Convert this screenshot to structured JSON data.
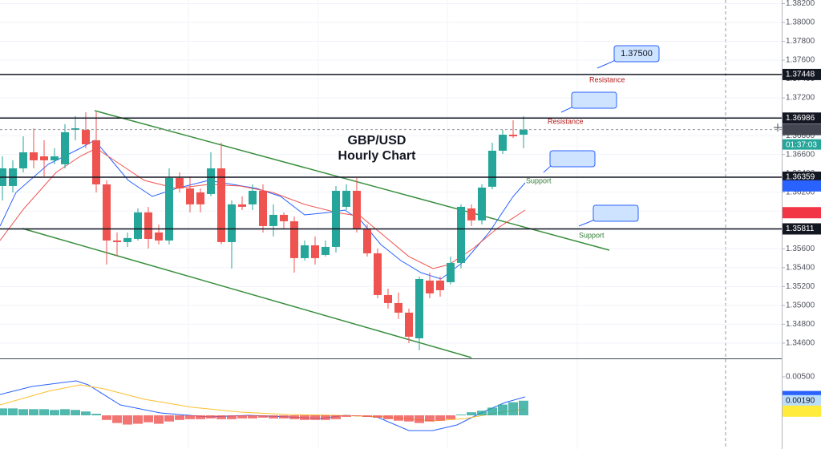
{
  "chart_data": [
    {
      "type": "candlestick",
      "title": [
        "GBP/USD",
        "Hourly Chart"
      ],
      "up_color": "#26a69a",
      "down_color": "#ef5350",
      "grid": true,
      "ylim": [
        1.34438,
        1.38238
      ],
      "yticks": [
        {
          "value": 1.346,
          "label": "1.34600"
        },
        {
          "value": 1.348,
          "label": "1.34800"
        },
        {
          "value": 1.35,
          "label": "1.35000"
        },
        {
          "value": 1.352,
          "label": "1.35200"
        },
        {
          "value": 1.354,
          "label": "1.35400"
        },
        {
          "value": 1.356,
          "label": "1.35600"
        },
        {
          "value": 1.358,
          "label": "1.35800"
        },
        {
          "value": 1.36,
          "label": "1.36000"
        },
        {
          "value": 1.362,
          "label": "1.36200"
        },
        {
          "value": 1.364,
          "label": "1.36400"
        },
        {
          "value": 1.366,
          "label": "1.36600"
        },
        {
          "value": 1.368,
          "label": "1.36800"
        },
        {
          "value": 1.37,
          "label": "1.37000"
        },
        {
          "value": 1.372,
          "label": "1.37200"
        },
        {
          "value": 1.374,
          "label": "1.37400"
        },
        {
          "value": 1.376,
          "label": "1.37600"
        },
        {
          "value": 1.378,
          "label": "1.37800"
        },
        {
          "value": 1.38,
          "label": "1.38000"
        },
        {
          "value": 1.382,
          "label": "1.38200"
        }
      ],
      "open": [
        1.36266,
        1.36266,
        1.36453,
        1.36623,
        1.3658,
        1.36538,
        1.36496,
        1.36861,
        1.36861,
        1.3675,
        1.36283,
        1.35688,
        1.35671,
        1.35705,
        1.35986,
        1.35773,
        1.35688,
        1.36351,
        1.3624,
        1.36198,
        1.36181,
        1.36453,
        1.35671,
        1.36071,
        1.36071,
        1.36215,
        1.35841,
        1.3596,
        1.35892,
        1.35501,
        1.35637,
        1.35535,
        1.3562,
        1.36045,
        1.36215,
        1.35816,
        1.35552,
        1.3511,
        1.35025,
        1.34923,
        1.34651,
        1.35263,
        1.35263,
        1.35246,
        1.3545,
        1.36028,
        1.35901,
        1.36258,
        1.3664,
        1.3681,
        1.3681
      ],
      "high": [
        1.3658,
        1.36538,
        1.36793,
        1.36878,
        1.3675,
        1.36666,
        1.36921,
        1.37006,
        1.37048,
        1.37048,
        1.36326,
        1.35773,
        1.35773,
        1.36028,
        1.36045,
        1.35858,
        1.36453,
        1.3641,
        1.36368,
        1.3624,
        1.36623,
        1.36725,
        1.36113,
        1.36156,
        1.36283,
        1.36283,
        1.36071,
        1.35986,
        1.35943,
        1.35688,
        1.35731,
        1.35688,
        1.36266,
        1.36283,
        1.36351,
        1.35858,
        1.35603,
        1.35178,
        1.35136,
        1.34966,
        1.35306,
        1.35348,
        1.35306,
        1.35518,
        1.36071,
        1.36071,
        1.36283,
        1.36725,
        1.36861,
        1.36963,
        1.37006
      ],
      "low": [
        1.36113,
        1.36198,
        1.3641,
        1.36453,
        1.36368,
        1.36496,
        1.36453,
        1.3675,
        1.36666,
        1.36198,
        1.35433,
        1.35518,
        1.3562,
        1.35688,
        1.35603,
        1.35646,
        1.35646,
        1.36198,
        1.35986,
        1.35986,
        1.36156,
        1.35646,
        1.35391,
        1.36011,
        1.36011,
        1.35773,
        1.35731,
        1.35816,
        1.35348,
        1.35476,
        1.35433,
        1.35518,
        1.35561,
        1.36011,
        1.35773,
        1.35518,
        1.35076,
        1.34966,
        1.34855,
        1.346,
        1.34524,
        1.35076,
        1.35093,
        1.35221,
        1.35391,
        1.35841,
        1.35858,
        1.36232,
        1.36606,
        1.36776,
        1.36666
      ],
      "close": [
        1.36453,
        1.36453,
        1.36623,
        1.36538,
        1.36538,
        1.3658,
        1.36836,
        1.36878,
        1.36708,
        1.36283,
        1.35688,
        1.35671,
        1.35714,
        1.35986,
        1.35705,
        1.35688,
        1.36351,
        1.3624,
        1.36071,
        1.36071,
        1.36453,
        1.35671,
        1.36071,
        1.36045,
        1.36215,
        1.35841,
        1.3596,
        1.35892,
        1.35501,
        1.35637,
        1.35501,
        1.3562,
        1.36215,
        1.36215,
        1.35816,
        1.35552,
        1.3511,
        1.35025,
        1.34923,
        1.34668,
        1.3528,
        1.35127,
        1.35161,
        1.3545,
        1.36045,
        1.35901,
        1.36249,
        1.3664,
        1.3681,
        1.36793,
        1.36864
      ],
      "levels": [
        1.37448,
        1.36986,
        1.36359,
        1.35811
      ],
      "level_color": "#131722",
      "price_markers": [
        {
          "value": 1.36864,
          "color": "#434651"
        },
        {
          "value": 1.36267,
          "color": "#2962ff"
        },
        {
          "value": 1.35983,
          "color": "#f23645"
        }
      ],
      "countdown": "01:37:03",
      "callouts": [
        {
          "value": 1.375,
          "label": "1.37500"
        },
        {
          "value": 1.36987
        },
        {
          "value": 1.36394
        },
        {
          "value": 1.35816
        }
      ],
      "annotations": [
        {
          "text": "Resistance",
          "color": "#b71c1c"
        },
        {
          "text": "Resistance",
          "color": "#b71c1c"
        },
        {
          "text": "Support",
          "color": "#2e7d32"
        },
        {
          "text": "Support",
          "color": "#2e7d32"
        }
      ]
    },
    {
      "type": "bar",
      "pos_color": "#26a69a",
      "neg_color": "#ef5350",
      "ylim": [
        -0.003125,
        0.006875
      ],
      "yticks": [
        {
          "value": 0.005,
          "label": "0.00500"
        }
      ],
      "values": [
        0.0009,
        0.0009,
        0.0008,
        0.0008,
        0.0008,
        0.0007,
        0.0008,
        0.0007,
        0.0005,
        0.0002,
        -0.0006,
        -0.001,
        -0.0012,
        -0.0011,
        -0.0009,
        -0.0011,
        -0.0008,
        -0.0006,
        -0.0005,
        -0.0005,
        -0.0004,
        -0.0005,
        -0.0005,
        -0.0004,
        -0.0004,
        -0.0003,
        -0.0004,
        -0.0004,
        -0.0005,
        -0.0006,
        -0.0006,
        -0.0006,
        -0.0005,
        -0.0002,
        -0.0001,
        -0.0002,
        -0.0003,
        -0.0005,
        -0.0007,
        -0.0008,
        -0.001,
        -0.0008,
        -0.0007,
        -0.0005,
        0.0001,
        0.0004,
        0.0006,
        0.001,
        0.0014,
        0.0017,
        0.0019
      ],
      "price_markers": [
        {
          "value": 0.00244,
          "color": "#2962ff",
          "text_color": "#ffffff"
        },
        {
          "value": 0.0019,
          "label": "0.00190",
          "color": "#bbdefb",
          "text_color": "#131722"
        },
        {
          "value": 0.00054,
          "color": "#ffeb3b",
          "text_color": "#131722"
        }
      ]
    }
  ]
}
